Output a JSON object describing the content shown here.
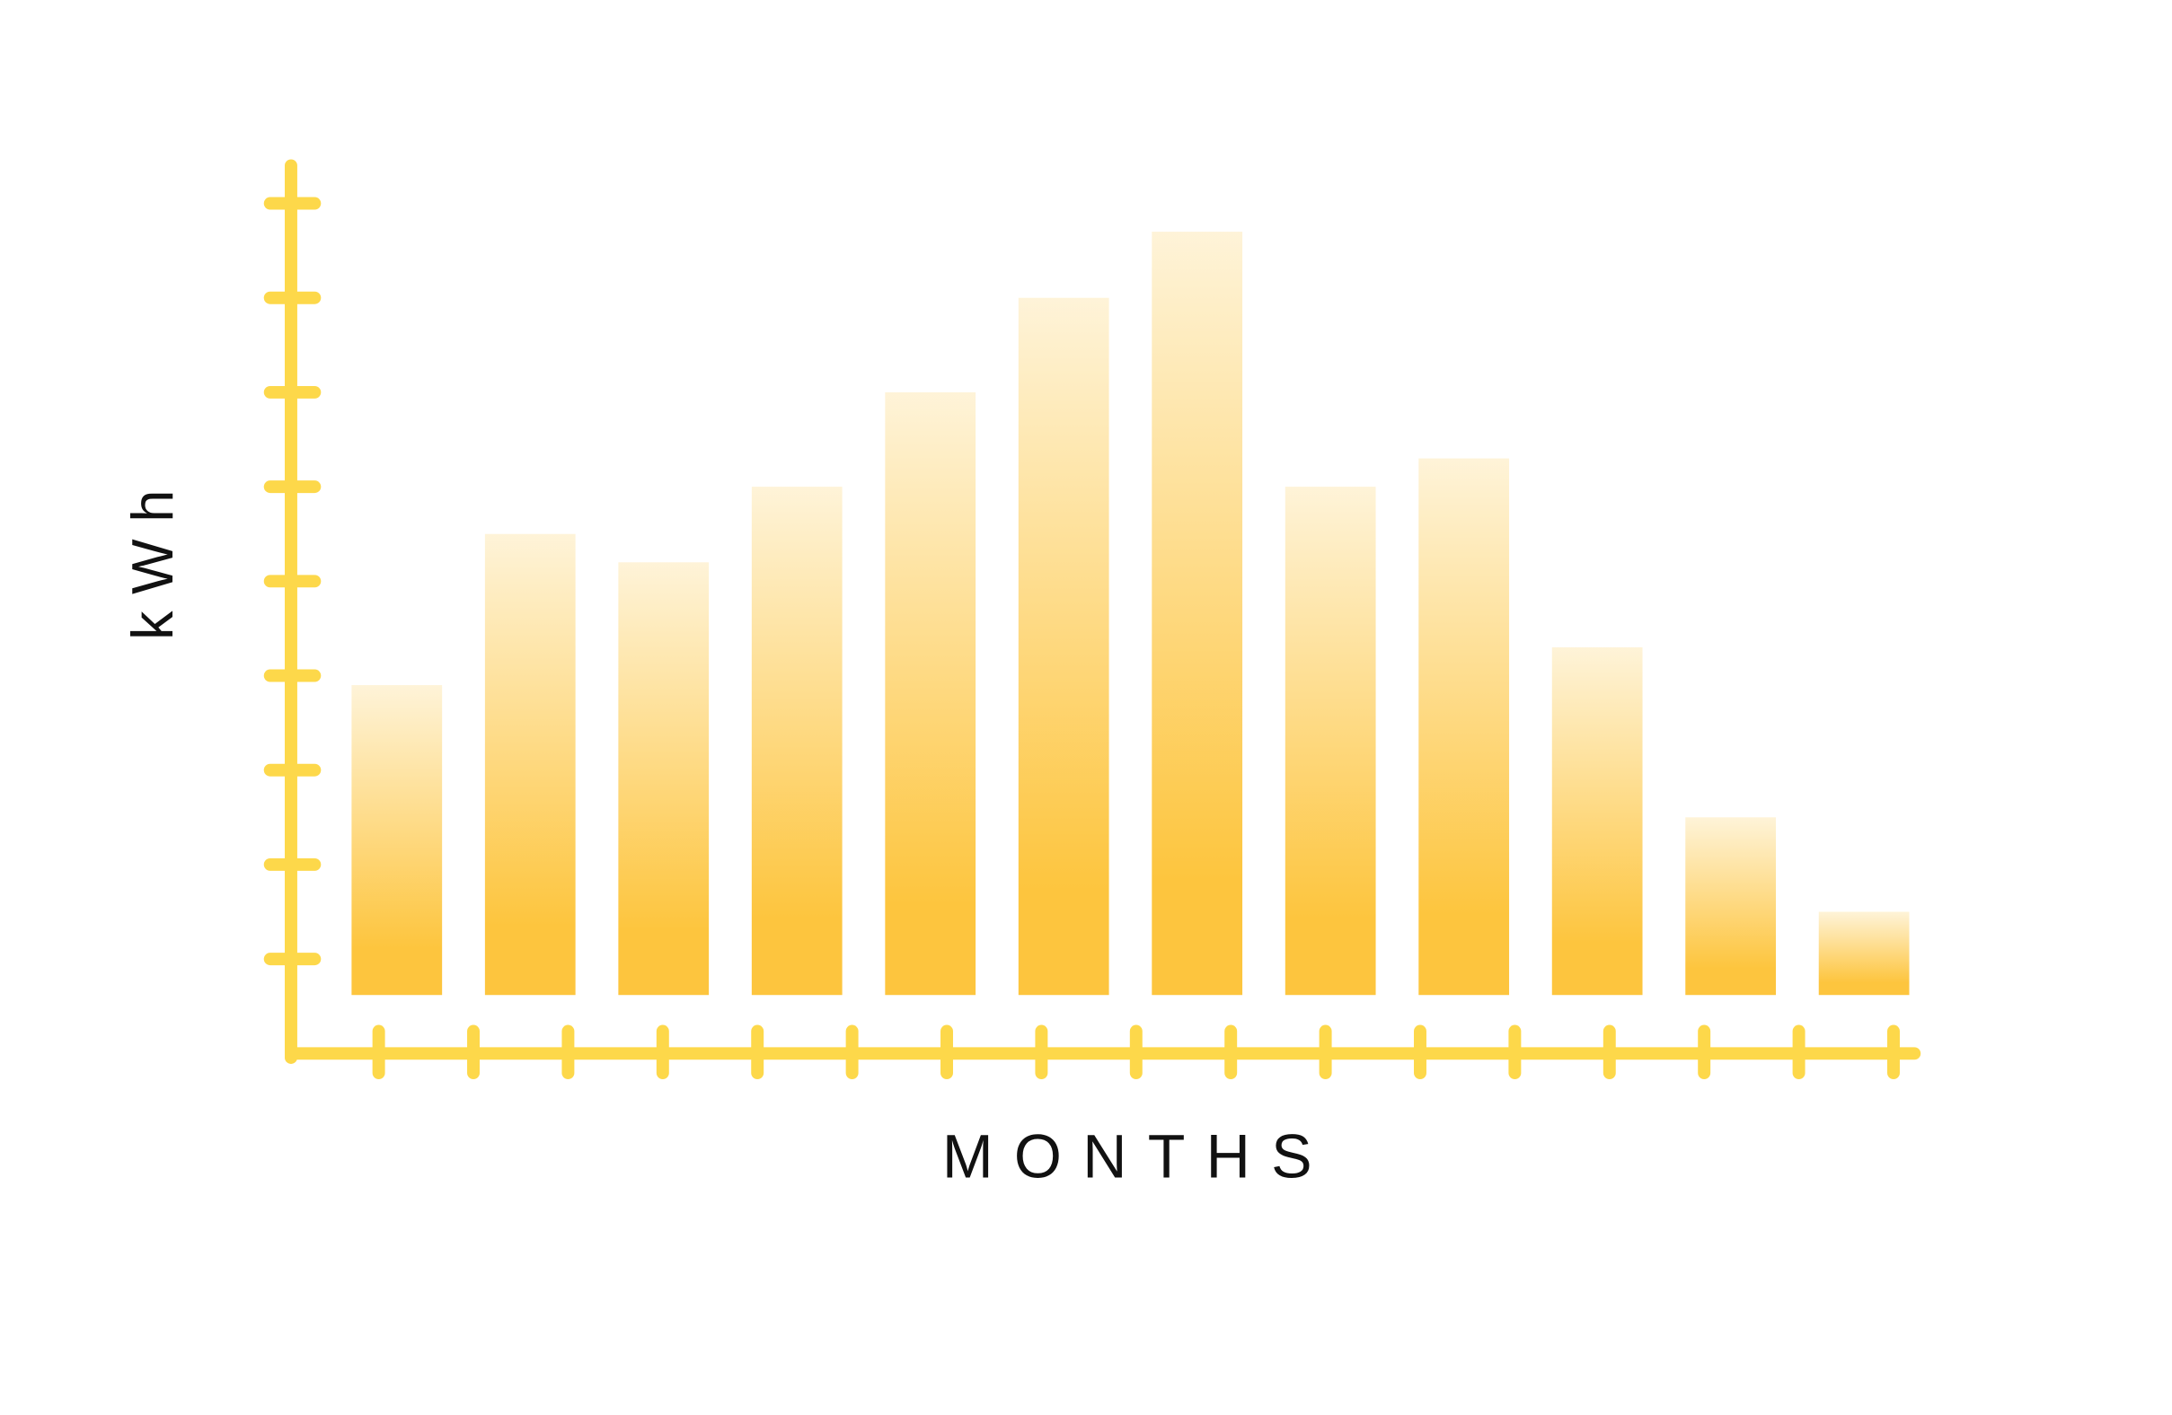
{
  "chart_data": {
    "type": "bar",
    "x_label": "MONTHS",
    "y_label": "kWh",
    "categories": [
      null,
      null,
      null,
      null,
      null,
      null,
      null,
      null,
      null,
      null,
      null,
      null
    ],
    "values": [
      3.9,
      5.5,
      5.2,
      6.0,
      7.0,
      8.0,
      8.7,
      6.0,
      6.3,
      4.3,
      2.5,
      1.5
    ],
    "color": "#fdc53e",
    "ylim": [
      0,
      9.4
    ],
    "yticks": [
      1,
      2,
      3,
      4,
      5,
      6,
      7,
      8,
      9
    ]
  }
}
